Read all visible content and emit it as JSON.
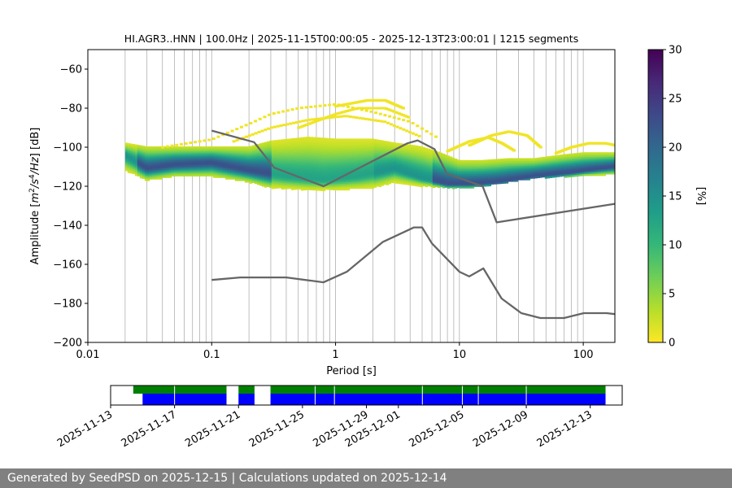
{
  "chart_data": [
    {
      "type": "heatmap",
      "title": "HI.AGR3..HNN | 100.0Hz | 2025-11-15T00:00:05 - 2025-12-13T23:00:01 | 1215 segments",
      "xlabel": "Period [s]",
      "ylabel_parts": [
        "Amplitude [",
        "m",
        "2",
        "/",
        "s",
        "4",
        "/",
        "Hz",
        "] [dB]"
      ],
      "x_scale": "log",
      "xlim": [
        0.01,
        180
      ],
      "ylim": [
        -200,
        -50
      ],
      "x_ticks": [
        0.01,
        0.1,
        1,
        10,
        100
      ],
      "x_tick_labels": [
        "0.01",
        "0.1",
        "1",
        "10",
        "100"
      ],
      "y_ticks": [
        -200,
        -180,
        -160,
        -140,
        -120,
        -100,
        -80,
        -60
      ],
      "y_tick_labels": [
        "−200",
        "−180",
        "−160",
        "−140",
        "−120",
        "−100",
        "−80",
        "−60"
      ],
      "grid": "vertical lines at periods",
      "grid_periods": [
        0.02,
        0.03,
        0.04,
        0.05,
        0.06,
        0.07,
        0.08,
        0.09,
        0.1,
        0.2,
        0.3,
        0.4,
        0.5,
        0.6,
        0.7,
        0.8,
        0.9,
        1,
        2,
        3,
        4,
        5,
        6,
        7,
        8,
        9,
        10,
        20,
        30,
        40,
        50,
        60,
        70,
        80,
        90,
        100
      ],
      "colorbar": {
        "label": "[%]",
        "range": [
          0,
          30
        ],
        "ticks": [
          0,
          5,
          10,
          15,
          20,
          25,
          30
        ],
        "colormap": [
          "#fde725",
          "#b5de2b",
          "#6ece58",
          "#35b779",
          "#1f9e89",
          "#26828e",
          "#31688e",
          "#3e4989",
          "#482878",
          "#440154"
        ]
      },
      "noise_models": [
        {
          "model": "high",
          "color": "#666666",
          "x": [
            0.1,
            0.22,
            0.32,
            0.8,
            3.8,
            4.6,
            6.3,
            7.9,
            15.4,
            20,
            180
          ],
          "y": [
            -91.5,
            -97.4,
            -110.5,
            -120,
            -98,
            -96.5,
            -101,
            -113.5,
            -120,
            -138.5,
            -129
          ]
        },
        {
          "model": "low",
          "color": "#666666",
          "x": [
            0.1,
            0.17,
            0.4,
            0.8,
            1.24,
            2.4,
            4.3,
            5.0,
            6.0,
            10,
            12,
            15.6,
            21.9,
            31.6,
            45,
            70,
            101,
            154,
            180
          ],
          "y": [
            -168,
            -166.7,
            -166.7,
            -169.2,
            -163.7,
            -148.6,
            -141.1,
            -141.1,
            -149.3,
            -163.8,
            -166.2,
            -162.1,
            -177.5,
            -185,
            -187.5,
            -187.5,
            -185,
            -185,
            -185.5
          ]
        }
      ],
      "ridge": {
        "note": "modal PSD ridge (highest occurrence percentage)",
        "x": [
          0.02,
          0.03,
          0.05,
          0.1,
          0.2,
          0.4,
          0.8,
          1.5,
          3,
          5,
          8,
          12,
          20,
          40,
          80,
          180
        ],
        "y": [
          -104,
          -111,
          -109,
          -108,
          -112,
          -115,
          -117,
          -115,
          -111,
          -116,
          -119,
          -119,
          -118,
          -115,
          -113,
          -110
        ]
      },
      "spread_upper": {
        "x": [
          0.02,
          0.03,
          0.05,
          0.1,
          0.2,
          0.3,
          0.6,
          1,
          2,
          3,
          4,
          5,
          7,
          10,
          15,
          25,
          40,
          70,
          100,
          180
        ],
        "y": [
          -98,
          -100,
          -100,
          -100,
          -100,
          -97,
          -95,
          -96,
          -96,
          -98,
          -99,
          -100,
          -103,
          -107,
          -107,
          -106,
          -106,
          -104,
          -103,
          -103
        ]
      },
      "spread_lower": {
        "x": [
          0.02,
          0.03,
          0.05,
          0.1,
          0.2,
          0.3,
          0.6,
          1,
          2,
          3,
          5,
          8,
          12,
          20,
          40,
          80,
          180
        ],
        "y": [
          -112,
          -117,
          -115,
          -115,
          -118,
          -121,
          -122,
          -122,
          -121,
          -118,
          -120,
          -121,
          -121,
          -119,
          -116,
          -115,
          -114
        ]
      },
      "upper_outliers": [
        {
          "x": [
            0.04,
            0.1,
            0.2,
            0.3,
            0.5,
            1,
            2,
            4,
            7
          ],
          "y": [
            -100,
            -96,
            -88,
            -83,
            -80,
            -78,
            -82,
            -87,
            -96
          ]
        },
        {
          "x": [
            0.15,
            0.3,
            0.6,
            1.2,
            2.5,
            5
          ],
          "y": [
            -97,
            -90,
            -86,
            -84,
            -87,
            -95
          ]
        },
        {
          "x": [
            0.5,
            1,
            1.5,
            2.5,
            4
          ],
          "y": [
            -90,
            -83,
            -80,
            -80,
            -85
          ]
        },
        {
          "x": [
            1,
            1.8,
            2.5,
            3.5
          ],
          "y": [
            -79,
            -76,
            -76,
            -80
          ]
        },
        {
          "x": [
            8,
            12,
            17,
            22,
            28
          ],
          "y": [
            -102,
            -97,
            -95,
            -98,
            -102
          ]
        },
        {
          "x": [
            12,
            18,
            25,
            35,
            45
          ],
          "y": [
            -99,
            -94,
            -92,
            -94,
            -100
          ]
        },
        {
          "x": [
            60,
            80,
            110,
            150,
            180
          ],
          "y": [
            -103,
            -100,
            -98,
            -98,
            -99
          ]
        }
      ]
    },
    {
      "type": "timeline",
      "x_tick_labels": [
        "2025-11-13",
        "2025-11-17",
        "2025-11-21",
        "2025-11-25",
        "2025-11-29",
        "2025-12-01",
        "2025-12-05",
        "2025-12-09",
        "2025-12-13"
      ],
      "x_tick_dates": [
        "2025-11-13",
        "2025-11-17",
        "2025-11-21",
        "2025-11-25",
        "2025-11-29",
        "2025-12-01",
        "2025-12-05",
        "2025-12-09",
        "2025-12-13"
      ],
      "xlim": [
        "2025-11-13T00:00:00",
        "2025-12-15T00:00:00"
      ],
      "available_data_color": "#008000",
      "processed_data_color": "#0000ff",
      "available_data_spans": [
        {
          "start": "2025-11-14T10:00:00",
          "end": "2025-11-20T06:00:00"
        },
        {
          "start": "2025-11-21T00:00:00",
          "end": "2025-11-22T00:00:00"
        },
        {
          "start": "2025-11-23T00:00:00",
          "end": "2025-12-13T23:00:00"
        }
      ],
      "processed_data_spans": [
        {
          "start": "2025-11-15T00:00:00",
          "end": "2025-11-20T06:00:00"
        },
        {
          "start": "2025-11-21T00:00:00",
          "end": "2025-11-22T00:00:00"
        },
        {
          "start": "2025-11-23T00:00:00",
          "end": "2025-12-13T23:00:00"
        }
      ],
      "segment_breaks": [
        "2025-11-17T00:00:00",
        "2025-11-25T19:00:00",
        "2025-11-27T00:00:00",
        "2025-12-02T12:00:00",
        "2025-12-05T00:00:00",
        "2025-12-06T00:00:00",
        "2025-12-09T00:00:00"
      ]
    }
  ],
  "footer": {
    "text": "Generated by SeedPSD on 2025-12-15 | Calculations updated on 2025-12-14"
  }
}
